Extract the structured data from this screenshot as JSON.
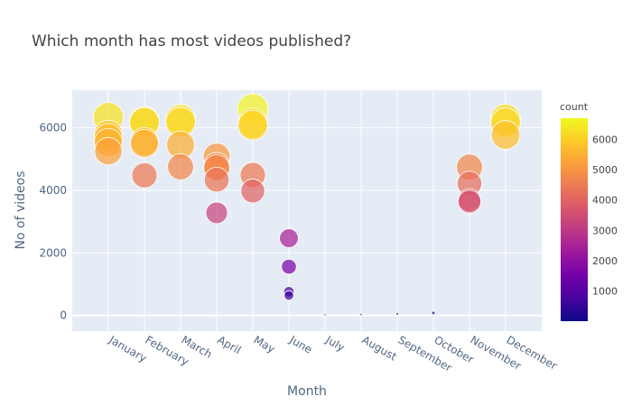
{
  "chart_data": {
    "type": "scatter",
    "title": "Which month has most videos published?",
    "xlabel": "Month",
    "ylabel": "No of videos",
    "categories": [
      "January",
      "February",
      "March",
      "April",
      "May",
      "June",
      "July",
      "August",
      "September",
      "October",
      "November",
      "December"
    ],
    "yticks": [
      0,
      2000,
      4000,
      6000
    ],
    "ylim": [
      -500,
      7200
    ],
    "grid": true,
    "legend": "colorbar right",
    "colorbar": {
      "title": "count",
      "ticks": [
        1000,
        2000,
        3000,
        4000,
        5000,
        6000
      ],
      "range": [
        0,
        6700
      ]
    },
    "colorscale": [
      "#0d0887",
      "#46039f",
      "#7201a8",
      "#9c179e",
      "#bd3786",
      "#d8576b",
      "#ed7953",
      "#fb9f3a",
      "#fdca26",
      "#f0f921"
    ],
    "plot_bgcolor": "#e5ecf6",
    "points": [
      {
        "month": "January",
        "y": 6330
      },
      {
        "month": "January",
        "y": 5780
      },
      {
        "month": "January",
        "y": 5680
      },
      {
        "month": "January",
        "y": 5530
      },
      {
        "month": "January",
        "y": 5250
      },
      {
        "month": "February",
        "y": 6200
      },
      {
        "month": "February",
        "y": 6170
      },
      {
        "month": "February",
        "y": 5560
      },
      {
        "month": "February",
        "y": 5500
      },
      {
        "month": "February",
        "y": 4480
      },
      {
        "month": "March",
        "y": 6270
      },
      {
        "month": "March",
        "y": 6180
      },
      {
        "month": "March",
        "y": 5450
      },
      {
        "month": "March",
        "y": 4750
      },
      {
        "month": "April",
        "y": 5080
      },
      {
        "month": "April",
        "y": 4790
      },
      {
        "month": "April",
        "y": 4720
      },
      {
        "month": "April",
        "y": 4340
      },
      {
        "month": "April",
        "y": 3280
      },
      {
        "month": "May",
        "y": 6600
      },
      {
        "month": "May",
        "y": 6150
      },
      {
        "month": "May",
        "y": 6080
      },
      {
        "month": "May",
        "y": 4490
      },
      {
        "month": "May",
        "y": 3980
      },
      {
        "month": "June",
        "y": 2470
      },
      {
        "month": "June",
        "y": 1560
      },
      {
        "month": "June",
        "y": 760
      },
      {
        "month": "June",
        "y": 640
      },
      {
        "month": "July",
        "y": 25
      },
      {
        "month": "August",
        "y": 35
      },
      {
        "month": "September",
        "y": 50
      },
      {
        "month": "October",
        "y": 80
      },
      {
        "month": "November",
        "y": 4740
      },
      {
        "month": "November",
        "y": 4220
      },
      {
        "month": "November",
        "y": 3690
      },
      {
        "month": "November",
        "y": 3640
      },
      {
        "month": "December",
        "y": 6280
      },
      {
        "month": "December",
        "y": 6160
      },
      {
        "month": "December",
        "y": 5770
      }
    ]
  }
}
